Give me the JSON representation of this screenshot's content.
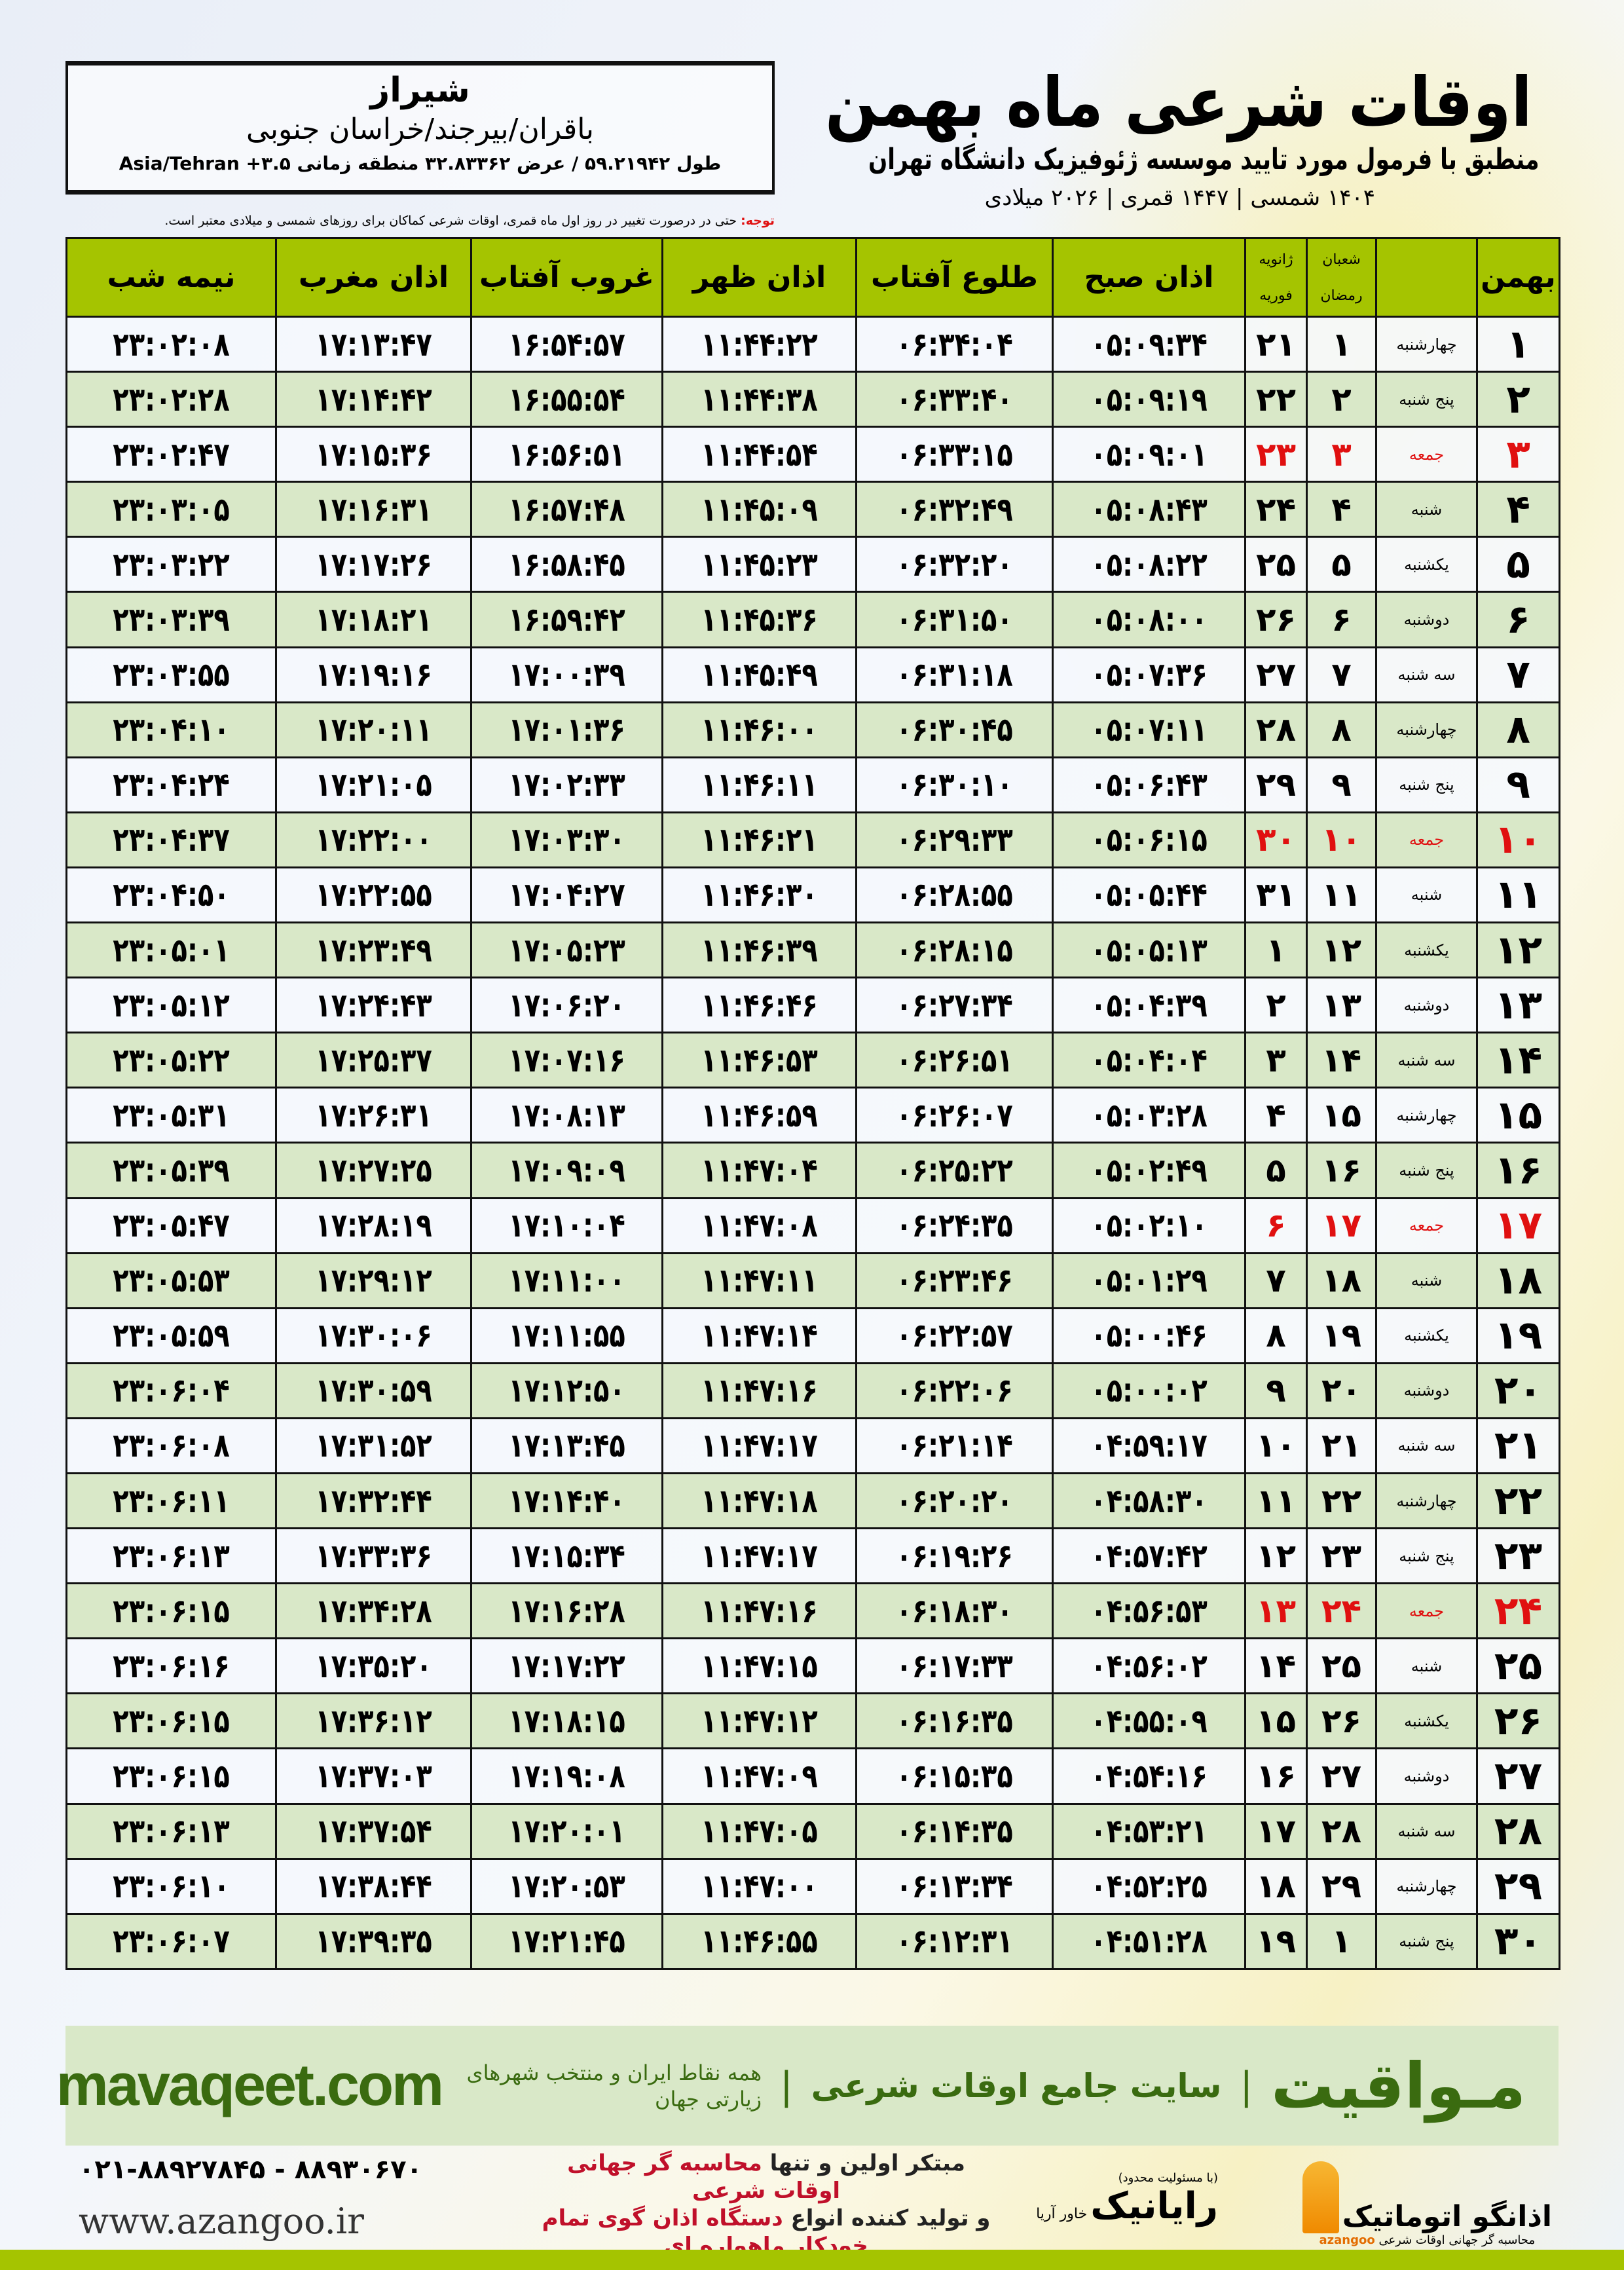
{
  "info": {
    "city": "شیراز",
    "region": "باقران/بیرجند/خراسان جنوبی",
    "coords": "طول ۵۹.۲۱۹۴۲ / عرض ۳۲.۸۳۳۶۲ منطقه زمانی",
    "timezone": "Asia/Tehran +۳.۵"
  },
  "header": {
    "title": "اوقات شرعی ماه بهمن",
    "subtitle": "منطبق با فرمول مورد تایید موسسه ژئوفیزیک دانشگاه تهران",
    "dates": "۱۴۰۴ شمسی | ۱۴۴۷ قمری | ۲۰۲۶ میلادی"
  },
  "note": {
    "label": "توجه:",
    "text": " حتی در درصورت تغییر در روز اول ماه قمری، اوقات شرعی کماکان برای روزهای شمسی و میلادی معتبر است."
  },
  "columns": {
    "day": "بهمن",
    "hijri_1": "شعبان",
    "hijri_2": "رمضان",
    "greg_1": "ژانویه",
    "greg_2": "فوریه",
    "fajr": "اذان صبح",
    "sunrise": "طلوع آفتاب",
    "dhuhr": "اذان ظهر",
    "sunset": "غروب آفتاب",
    "maghrib": "اذان مغرب",
    "midnight": "نیمه شب"
  },
  "colors": {
    "header": "#a5c400",
    "row_alt": "#d9e8c8",
    "holiday": "#e01010"
  },
  "rows": [
    [
      "۱",
      "چهارشنبه",
      "۱",
      "۲۱",
      "۰۵:۰۹:۳۴",
      "۰۶:۳۴:۰۴",
      "۱۱:۴۴:۲۲",
      "۱۶:۵۴:۵۷",
      "۱۷:۱۳:۴۷",
      "۲۳:۰۲:۰۸",
      false
    ],
    [
      "۲",
      "پنج شنبه",
      "۲",
      "۲۲",
      "۰۵:۰۹:۱۹",
      "۰۶:۳۳:۴۰",
      "۱۱:۴۴:۳۸",
      "۱۶:۵۵:۵۴",
      "۱۷:۱۴:۴۲",
      "۲۳:۰۲:۲۸",
      false
    ],
    [
      "۳",
      "جمعه",
      "۳",
      "۲۳",
      "۰۵:۰۹:۰۱",
      "۰۶:۳۳:۱۵",
      "۱۱:۴۴:۵۴",
      "۱۶:۵۶:۵۱",
      "۱۷:۱۵:۳۶",
      "۲۳:۰۲:۴۷",
      true
    ],
    [
      "۴",
      "شنبه",
      "۴",
      "۲۴",
      "۰۵:۰۸:۴۳",
      "۰۶:۳۲:۴۹",
      "۱۱:۴۵:۰۹",
      "۱۶:۵۷:۴۸",
      "۱۷:۱۶:۳۱",
      "۲۳:۰۳:۰۵",
      false
    ],
    [
      "۵",
      "یکشنبه",
      "۵",
      "۲۵",
      "۰۵:۰۸:۲۲",
      "۰۶:۳۲:۲۰",
      "۱۱:۴۵:۲۳",
      "۱۶:۵۸:۴۵",
      "۱۷:۱۷:۲۶",
      "۲۳:۰۳:۲۲",
      false
    ],
    [
      "۶",
      "دوشنبه",
      "۶",
      "۲۶",
      "۰۵:۰۸:۰۰",
      "۰۶:۳۱:۵۰",
      "۱۱:۴۵:۳۶",
      "۱۶:۵۹:۴۲",
      "۱۷:۱۸:۲۱",
      "۲۳:۰۳:۳۹",
      false
    ],
    [
      "۷",
      "سه شنبه",
      "۷",
      "۲۷",
      "۰۵:۰۷:۳۶",
      "۰۶:۳۱:۱۸",
      "۱۱:۴۵:۴۹",
      "۱۷:۰۰:۳۹",
      "۱۷:۱۹:۱۶",
      "۲۳:۰۳:۵۵",
      false
    ],
    [
      "۸",
      "چهارشنبه",
      "۸",
      "۲۸",
      "۰۵:۰۷:۱۱",
      "۰۶:۳۰:۴۵",
      "۱۱:۴۶:۰۰",
      "۱۷:۰۱:۳۶",
      "۱۷:۲۰:۱۱",
      "۲۳:۰۴:۱۰",
      false
    ],
    [
      "۹",
      "پنج شنبه",
      "۹",
      "۲۹",
      "۰۵:۰۶:۴۳",
      "۰۶:۳۰:۱۰",
      "۱۱:۴۶:۱۱",
      "۱۷:۰۲:۳۳",
      "۱۷:۲۱:۰۵",
      "۲۳:۰۴:۲۴",
      false
    ],
    [
      "۱۰",
      "جمعه",
      "۱۰",
      "۳۰",
      "۰۵:۰۶:۱۵",
      "۰۶:۲۹:۳۳",
      "۱۱:۴۶:۲۱",
      "۱۷:۰۳:۳۰",
      "۱۷:۲۲:۰۰",
      "۲۳:۰۴:۳۷",
      true
    ],
    [
      "۱۱",
      "شنبه",
      "۱۱",
      "۳۱",
      "۰۵:۰۵:۴۴",
      "۰۶:۲۸:۵۵",
      "۱۱:۴۶:۳۰",
      "۱۷:۰۴:۲۷",
      "۱۷:۲۲:۵۵",
      "۲۳:۰۴:۵۰",
      false
    ],
    [
      "۱۲",
      "یکشنبه",
      "۱۲",
      "۱",
      "۰۵:۰۵:۱۳",
      "۰۶:۲۸:۱۵",
      "۱۱:۴۶:۳۹",
      "۱۷:۰۵:۲۳",
      "۱۷:۲۳:۴۹",
      "۲۳:۰۵:۰۱",
      false
    ],
    [
      "۱۳",
      "دوشنبه",
      "۱۳",
      "۲",
      "۰۵:۰۴:۳۹",
      "۰۶:۲۷:۳۴",
      "۱۱:۴۶:۴۶",
      "۱۷:۰۶:۲۰",
      "۱۷:۲۴:۴۳",
      "۲۳:۰۵:۱۲",
      false
    ],
    [
      "۱۴",
      "سه شنبه",
      "۱۴",
      "۳",
      "۰۵:۰۴:۰۴",
      "۰۶:۲۶:۵۱",
      "۱۱:۴۶:۵۳",
      "۱۷:۰۷:۱۶",
      "۱۷:۲۵:۳۷",
      "۲۳:۰۵:۲۲",
      false
    ],
    [
      "۱۵",
      "چهارشنبه",
      "۱۵",
      "۴",
      "۰۵:۰۳:۲۸",
      "۰۶:۲۶:۰۷",
      "۱۱:۴۶:۵۹",
      "۱۷:۰۸:۱۳",
      "۱۷:۲۶:۳۱",
      "۲۳:۰۵:۳۱",
      false
    ],
    [
      "۱۶",
      "پنج شنبه",
      "۱۶",
      "۵",
      "۰۵:۰۲:۴۹",
      "۰۶:۲۵:۲۲",
      "۱۱:۴۷:۰۴",
      "۱۷:۰۹:۰۹",
      "۱۷:۲۷:۲۵",
      "۲۳:۰۵:۳۹",
      false
    ],
    [
      "۱۷",
      "جمعه",
      "۱۷",
      "۶",
      "۰۵:۰۲:۱۰",
      "۰۶:۲۴:۳۵",
      "۱۱:۴۷:۰۸",
      "۱۷:۱۰:۰۴",
      "۱۷:۲۸:۱۹",
      "۲۳:۰۵:۴۷",
      true
    ],
    [
      "۱۸",
      "شنبه",
      "۱۸",
      "۷",
      "۰۵:۰۱:۲۹",
      "۰۶:۲۳:۴۶",
      "۱۱:۴۷:۱۱",
      "۱۷:۱۱:۰۰",
      "۱۷:۲۹:۱۲",
      "۲۳:۰۵:۵۳",
      false
    ],
    [
      "۱۹",
      "یکشنبه",
      "۱۹",
      "۸",
      "۰۵:۰۰:۴۶",
      "۰۶:۲۲:۵۷",
      "۱۱:۴۷:۱۴",
      "۱۷:۱۱:۵۵",
      "۱۷:۳۰:۰۶",
      "۲۳:۰۵:۵۹",
      false
    ],
    [
      "۲۰",
      "دوشنبه",
      "۲۰",
      "۹",
      "۰۵:۰۰:۰۲",
      "۰۶:۲۲:۰۶",
      "۱۱:۴۷:۱۶",
      "۱۷:۱۲:۵۰",
      "۱۷:۳۰:۵۹",
      "۲۳:۰۶:۰۴",
      false
    ],
    [
      "۲۱",
      "سه شنبه",
      "۲۱",
      "۱۰",
      "۰۴:۵۹:۱۷",
      "۰۶:۲۱:۱۴",
      "۱۱:۴۷:۱۷",
      "۱۷:۱۳:۴۵",
      "۱۷:۳۱:۵۲",
      "۲۳:۰۶:۰۸",
      false
    ],
    [
      "۲۲",
      "چهارشنبه",
      "۲۲",
      "۱۱",
      "۰۴:۵۸:۳۰",
      "۰۶:۲۰:۲۰",
      "۱۱:۴۷:۱۸",
      "۱۷:۱۴:۴۰",
      "۱۷:۳۲:۴۴",
      "۲۳:۰۶:۱۱",
      false
    ],
    [
      "۲۳",
      "پنج شنبه",
      "۲۳",
      "۱۲",
      "۰۴:۵۷:۴۲",
      "۰۶:۱۹:۲۶",
      "۱۱:۴۷:۱۷",
      "۱۷:۱۵:۳۴",
      "۱۷:۳۳:۳۶",
      "۲۳:۰۶:۱۳",
      false
    ],
    [
      "۲۴",
      "جمعه",
      "۲۴",
      "۱۳",
      "۰۴:۵۶:۵۳",
      "۰۶:۱۸:۳۰",
      "۱۱:۴۷:۱۶",
      "۱۷:۱۶:۲۸",
      "۱۷:۳۴:۲۸",
      "۲۳:۰۶:۱۵",
      true
    ],
    [
      "۲۵",
      "شنبه",
      "۲۵",
      "۱۴",
      "۰۴:۵۶:۰۲",
      "۰۶:۱۷:۳۳",
      "۱۱:۴۷:۱۵",
      "۱۷:۱۷:۲۲",
      "۱۷:۳۵:۲۰",
      "۲۳:۰۶:۱۶",
      false
    ],
    [
      "۲۶",
      "یکشنبه",
      "۲۶",
      "۱۵",
      "۰۴:۵۵:۰۹",
      "۰۶:۱۶:۳۵",
      "۱۱:۴۷:۱۲",
      "۱۷:۱۸:۱۵",
      "۱۷:۳۶:۱۲",
      "۲۳:۰۶:۱۵",
      false
    ],
    [
      "۲۷",
      "دوشنبه",
      "۲۷",
      "۱۶",
      "۰۴:۵۴:۱۶",
      "۰۶:۱۵:۳۵",
      "۱۱:۴۷:۰۹",
      "۱۷:۱۹:۰۸",
      "۱۷:۳۷:۰۳",
      "۲۳:۰۶:۱۵",
      false
    ],
    [
      "۲۸",
      "سه شنبه",
      "۲۸",
      "۱۷",
      "۰۴:۵۳:۲۱",
      "۰۶:۱۴:۳۵",
      "۱۱:۴۷:۰۵",
      "۱۷:۲۰:۰۱",
      "۱۷:۳۷:۵۴",
      "۲۳:۰۶:۱۳",
      false
    ],
    [
      "۲۹",
      "چهارشنبه",
      "۲۹",
      "۱۸",
      "۰۴:۵۲:۲۵",
      "۰۶:۱۳:۳۴",
      "۱۱:۴۷:۰۰",
      "۱۷:۲۰:۵۳",
      "۱۷:۳۸:۴۴",
      "۲۳:۰۶:۱۰",
      false
    ],
    [
      "۳۰",
      "پنج شنبه",
      "۱",
      "۱۹",
      "۰۴:۵۱:۲۸",
      "۰۶:۱۲:۳۱",
      "۱۱:۴۶:۵۵",
      "۱۷:۲۱:۴۵",
      "۱۷:۳۹:۳۵",
      "۲۳:۰۶:۰۷",
      false
    ]
  ],
  "footer": {
    "logo": "مـواقیت",
    "site": "سایت جامع اوقات شرعی",
    "sub": "همه نقاط ایران و منتخب شهرهای زیارتی جهان",
    "url": "mavaqeet.com"
  },
  "contact": {
    "phone": "۰۲۱-۸۸۹۲۷۸۴۵ - ۸۸۹۳۰۶۷۰",
    "web": "www.azangoo.ir",
    "slogan1a": "مبتکر اولین و تنها ",
    "slogan1b": "محاسبه گر جهانی اوقات شرعی",
    "slogan2a": "و تولید کننده انواع ",
    "slogan2b": "دستگاه اذان گوی تمام خودکار ماهواره ای"
  },
  "logos": {
    "rayanik_note": "(با مسئولیت محدود)",
    "rayanik": "رایانیک",
    "rayanik_sub": "خاور آریا",
    "azangoo": "اذانگو اتوماتیک",
    "azangoo_sub": "محاسبه گر جهانی اوقات شرعی",
    "azangoo_en": "azangoo"
  }
}
